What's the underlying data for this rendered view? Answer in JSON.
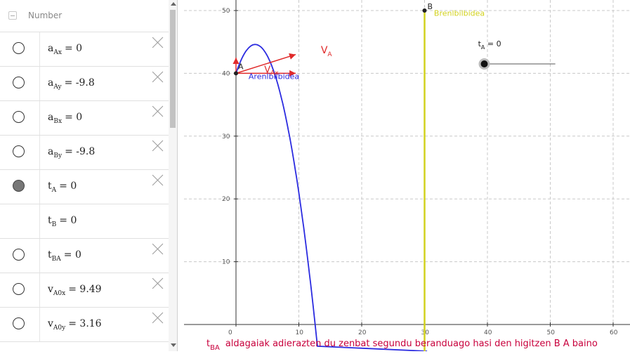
{
  "algebra": {
    "header": "Number",
    "rows": [
      {
        "main": "a",
        "sub": "Ax",
        "value": "= 0",
        "style": "open",
        "del": true
      },
      {
        "main": "a",
        "sub": "Ay",
        "value": "= -9.8",
        "style": "open",
        "del": true
      },
      {
        "main": "a",
        "sub": "Bx",
        "value": "= 0",
        "style": "open",
        "del": true
      },
      {
        "main": "a",
        "sub": "By",
        "value": "= -9.8",
        "style": "open",
        "del": true
      },
      {
        "main": "t",
        "sub": "A",
        "value": "= 0",
        "style": "filled",
        "del": true
      },
      {
        "main": "t",
        "sub": "B",
        "value": "= 0",
        "style": "none",
        "del": false
      },
      {
        "main": "t",
        "sub": "BA",
        "value": "= 0",
        "style": "open",
        "del": true
      },
      {
        "main": "v",
        "sub": "A0x",
        "value": "= 9.49",
        "style": "open",
        "del": true
      },
      {
        "main": "v",
        "sub": "A0y",
        "value": "= 3.16",
        "style": "open",
        "del": true
      }
    ]
  },
  "graph": {
    "x_ticks": [
      "0",
      "10",
      "20",
      "30",
      "40",
      "50",
      "60"
    ],
    "y_ticks": [
      "10",
      "20",
      "30",
      "40",
      "50"
    ],
    "point_A": "A",
    "point_B": "B",
    "label_A_path": "Arenlbilbidea",
    "label_B_path": "Brenlbilbidea",
    "vector_A": "V",
    "vector_A_sub": "A",
    "vector_Ax": "V",
    "vector_Ax_sub": "Ax",
    "slider_label": "t",
    "slider_sub": "A",
    "slider_value": " = 0",
    "caption_var": "t",
    "caption_sub": "BA",
    "caption_text": "aldagaiak adierazten du zenbat segundu beranduago hasi den higitzen B  A baino",
    "colors": {
      "blue": "#2b2be0",
      "yellow": "#d2d21e",
      "red": "#e02a2a",
      "caption": "#c8003c"
    }
  }
}
